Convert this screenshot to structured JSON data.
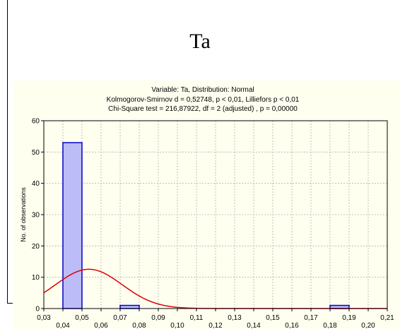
{
  "page": {
    "heading": "Ta"
  },
  "chart_data": {
    "type": "bar",
    "title_lines": [
      "Variable: Ta, Distribution: Normal",
      "Kolmogorov-Smirnov d = 0,52748, p < 0,01, Lilliefors p < 0,01",
      "Chi-Square test = 216,87922, df = 2 (adjusted) , p = 0,00000"
    ],
    "ylabel": "No. of observations",
    "xlabel": "",
    "xlim": [
      0.03,
      0.21
    ],
    "ylim": [
      0,
      60
    ],
    "x_ticks_upper": [
      "0,03",
      "0,05",
      "0,07",
      "0,09",
      "0,11",
      "0,13",
      "0,15",
      "0,17",
      "0,19",
      "0,21"
    ],
    "x_ticks_lower": [
      "0,04",
      "0,06",
      "0,08",
      "0,10",
      "0,12",
      "0,14",
      "0,16",
      "0,18",
      "0,20"
    ],
    "y_ticks": [
      "0",
      "10",
      "20",
      "30",
      "40",
      "50",
      "60"
    ],
    "bin_width": 0.01,
    "bars": [
      {
        "x_start": 0.04,
        "value": 53
      },
      {
        "x_start": 0.07,
        "value": 1
      },
      {
        "x_start": 0.18,
        "value": 1
      }
    ],
    "normal_curve": {
      "mean": 0.0536,
      "std": 0.0175,
      "n": 55
    },
    "grid": true,
    "colors": {
      "bar_fill": "#bcbcf8",
      "bar_stroke": "#0000cc",
      "curve": "#dd0000",
      "grid": "#b0b0b0",
      "panel_bg": "#fffff0"
    }
  }
}
